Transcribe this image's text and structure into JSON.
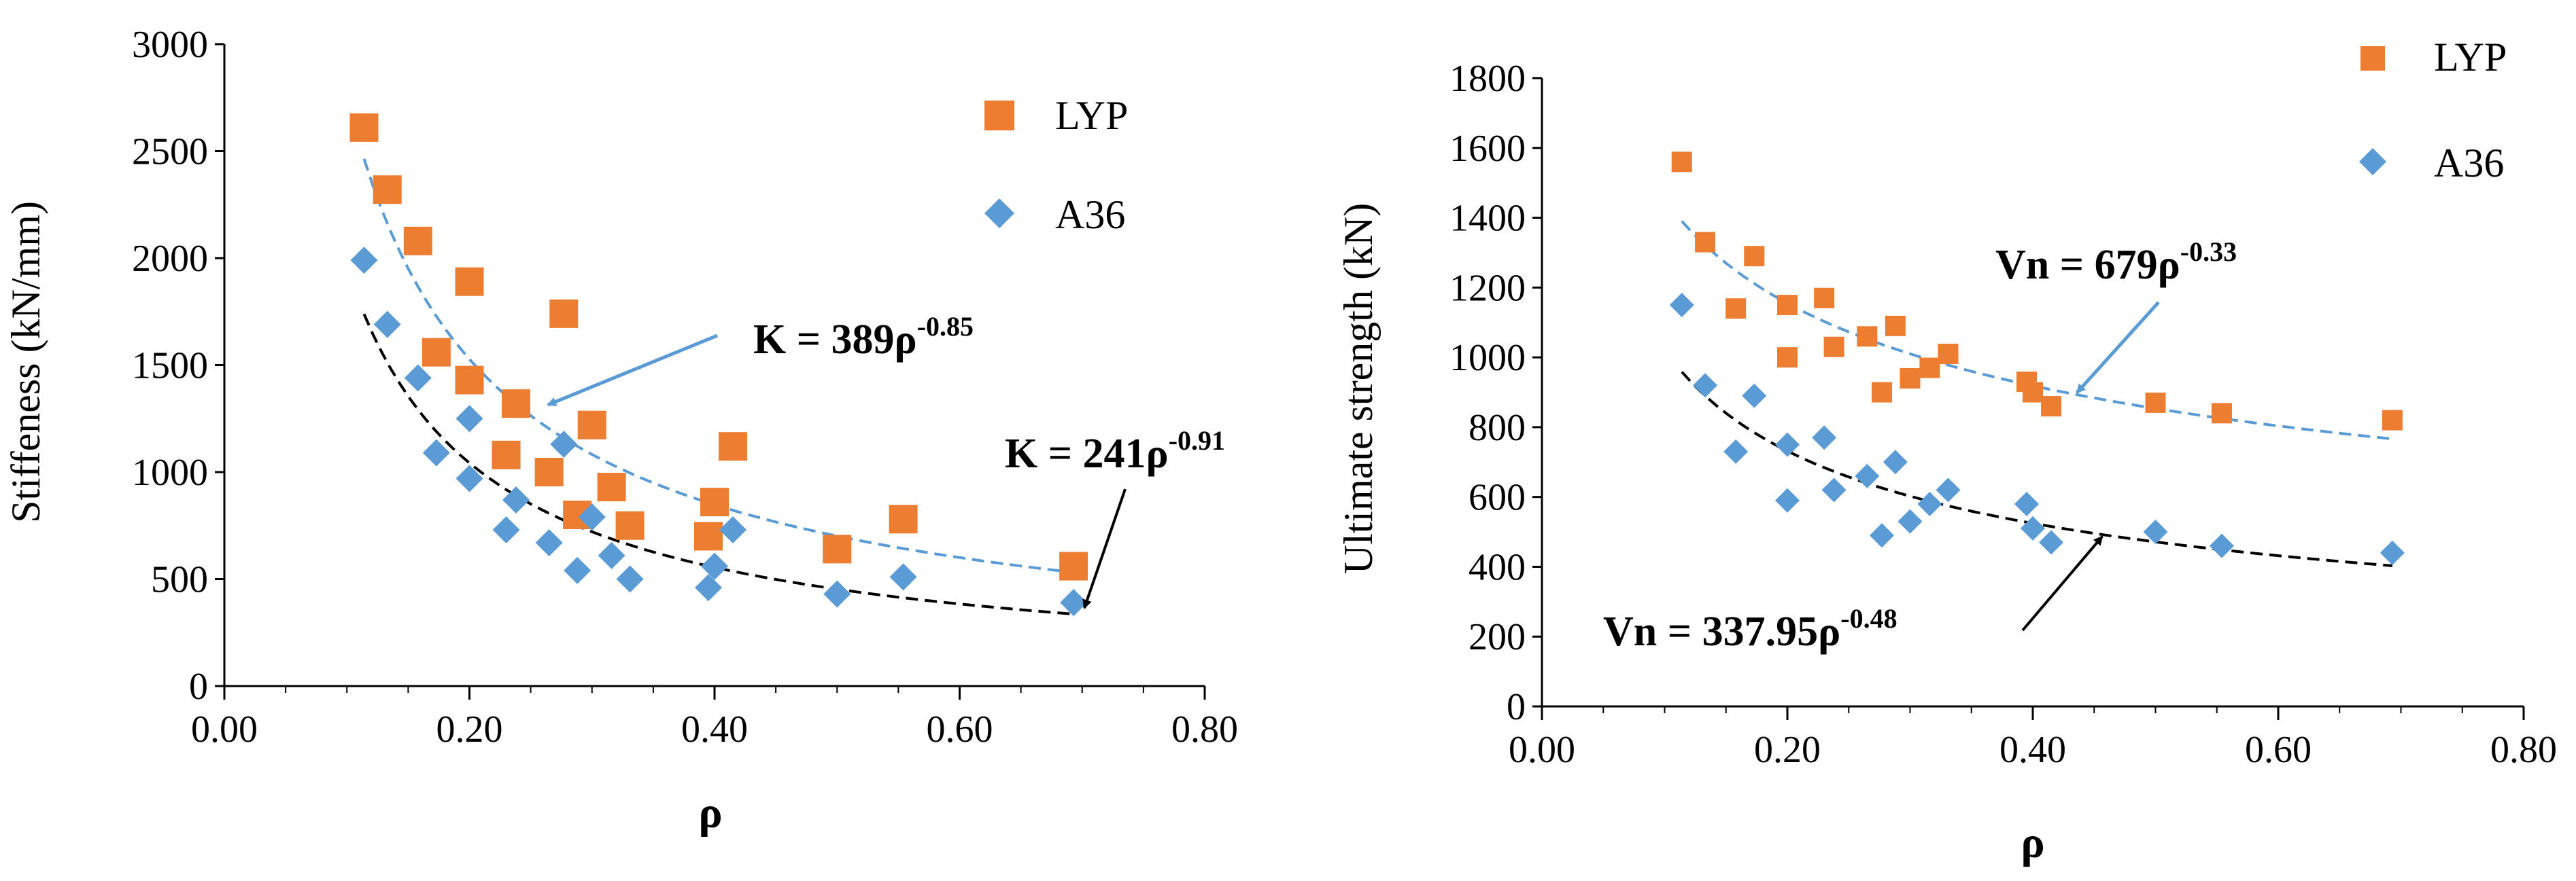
{
  "colors": {
    "lyp": "#ED7D31",
    "a36": "#5B9BD5",
    "fit_lyp": "#5B9BD5",
    "fit_a36": "#000000",
    "axis": "#000000"
  },
  "chart_data": [
    {
      "type": "scatter",
      "title": "",
      "xlabel": "ρ",
      "ylabel": "Stiffeness (kN/mm)",
      "xlim": [
        0,
        0.8
      ],
      "ylim": [
        0,
        3000
      ],
      "xticks": [
        "0.00",
        "0.20",
        "0.40",
        "0.60",
        "0.80"
      ],
      "xtick_values": [
        0,
        0.2,
        0.4,
        0.6,
        0.8
      ],
      "yticks": [
        "0",
        "500",
        "1000",
        "1500",
        "2000",
        "2500",
        "3000"
      ],
      "ytick_values": [
        0,
        500,
        1000,
        1500,
        2000,
        2500,
        3000
      ],
      "legend": [
        "LYP",
        "A36"
      ],
      "series": [
        {
          "name": "LYP",
          "marker": "square",
          "points": [
            [
              0.114,
              2610
            ],
            [
              0.133,
              2320
            ],
            [
              0.158,
              2080
            ],
            [
              0.2,
              1890
            ],
            [
              0.173,
              1560
            ],
            [
              0.2,
              1430
            ],
            [
              0.23,
              1080
            ],
            [
              0.238,
              1320
            ],
            [
              0.265,
              1000
            ],
            [
              0.277,
              1740
            ],
            [
              0.288,
              800
            ],
            [
              0.3,
              1220
            ],
            [
              0.316,
              930
            ],
            [
              0.331,
              750
            ],
            [
              0.395,
              700
            ],
            [
              0.4,
              860
            ],
            [
              0.415,
              1120
            ],
            [
              0.5,
              640
            ],
            [
              0.554,
              780
            ],
            [
              0.693,
              560
            ]
          ]
        },
        {
          "name": "A36",
          "marker": "diamond",
          "points": [
            [
              0.114,
              1990
            ],
            [
              0.133,
              1690
            ],
            [
              0.158,
              1440
            ],
            [
              0.173,
              1090
            ],
            [
              0.2,
              1250
            ],
            [
              0.2,
              970
            ],
            [
              0.23,
              730
            ],
            [
              0.238,
              870
            ],
            [
              0.265,
              670
            ],
            [
              0.277,
              1130
            ],
            [
              0.288,
              540
            ],
            [
              0.3,
              790
            ],
            [
              0.316,
              610
            ],
            [
              0.331,
              500
            ],
            [
              0.395,
              460
            ],
            [
              0.4,
              560
            ],
            [
              0.415,
              730
            ],
            [
              0.5,
              430
            ],
            [
              0.554,
              510
            ],
            [
              0.693,
              390
            ]
          ]
        }
      ],
      "fits": [
        {
          "name": "LYP fit",
          "a": 389,
          "b": -0.85,
          "x_range": [
            0.114,
            0.693
          ],
          "style": "dashed",
          "label": "K = 389ρ",
          "label_exp": "-0.85"
        },
        {
          "name": "A36 fit",
          "a": 241,
          "b": -0.91,
          "x_range": [
            0.114,
            0.693
          ],
          "style": "dashed",
          "label": "K = 241ρ",
          "label_exp": "-0.91"
        }
      ]
    },
    {
      "type": "scatter",
      "title": "",
      "xlabel": "ρ",
      "ylabel": "Ultimate strength (kN)",
      "xlim": [
        0,
        0.8
      ],
      "ylim": [
        0,
        1800
      ],
      "xticks": [
        "0.00",
        "0.20",
        "0.40",
        "0.60",
        "0.80"
      ],
      "xtick_values": [
        0,
        0.2,
        0.4,
        0.6,
        0.8
      ],
      "yticks": [
        "0",
        "200",
        "400",
        "600",
        "800",
        "1000",
        "1200",
        "1400",
        "1600",
        "1800"
      ],
      "ytick_values": [
        0,
        200,
        400,
        600,
        800,
        1000,
        1200,
        1400,
        1600,
        1800
      ],
      "legend": [
        "LYP",
        "A36"
      ],
      "series": [
        {
          "name": "LYP",
          "marker": "square",
          "points": [
            [
              0.114,
              1560
            ],
            [
              0.133,
              1330
            ],
            [
              0.158,
              1140
            ],
            [
              0.173,
              1290
            ],
            [
              0.2,
              1150
            ],
            [
              0.2,
              1000
            ],
            [
              0.23,
              1170
            ],
            [
              0.238,
              1030
            ],
            [
              0.265,
              1060
            ],
            [
              0.277,
              900
            ],
            [
              0.288,
              1090
            ],
            [
              0.3,
              940
            ],
            [
              0.316,
              970
            ],
            [
              0.331,
              1010
            ],
            [
              0.395,
              930
            ],
            [
              0.4,
              900
            ],
            [
              0.415,
              860
            ],
            [
              0.5,
              870
            ],
            [
              0.554,
              840
            ],
            [
              0.693,
              820
            ]
          ]
        },
        {
          "name": "A36",
          "marker": "diamond",
          "points": [
            [
              0.114,
              1150
            ],
            [
              0.133,
              920
            ],
            [
              0.158,
              730
            ],
            [
              0.173,
              890
            ],
            [
              0.2,
              750
            ],
            [
              0.2,
              590
            ],
            [
              0.23,
              770
            ],
            [
              0.238,
              620
            ],
            [
              0.265,
              660
            ],
            [
              0.277,
              490
            ],
            [
              0.288,
              700
            ],
            [
              0.3,
              530
            ],
            [
              0.316,
              580
            ],
            [
              0.331,
              620
            ],
            [
              0.395,
              580
            ],
            [
              0.4,
              510
            ],
            [
              0.415,
              470
            ],
            [
              0.5,
              500
            ],
            [
              0.554,
              460
            ],
            [
              0.693,
              440
            ]
          ]
        }
      ],
      "fits": [
        {
          "name": "LYP fit",
          "a": 679,
          "b": -0.33,
          "x_range": [
            0.114,
            0.693
          ],
          "style": "dashed",
          "label": "Vn = 679ρ",
          "label_exp": "-0.33"
        },
        {
          "name": "A36 fit",
          "a": 337.95,
          "b": -0.48,
          "x_range": [
            0.114,
            0.693
          ],
          "style": "dashed",
          "label": "Vn = 337.95ρ",
          "label_exp": "-0.48"
        }
      ]
    }
  ]
}
